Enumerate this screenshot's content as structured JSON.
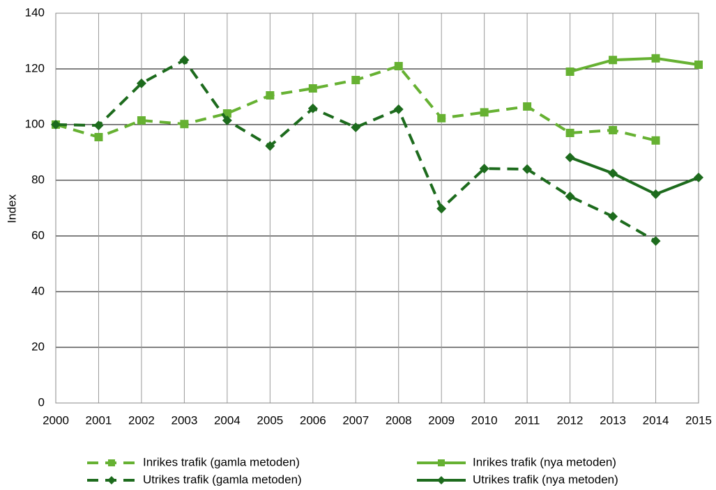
{
  "chart_data": {
    "type": "line",
    "y_label": "Index",
    "x": [
      2000,
      2001,
      2002,
      2003,
      2004,
      2005,
      2006,
      2007,
      2008,
      2009,
      2010,
      2011,
      2012,
      2013,
      2014,
      2015
    ],
    "xlim": [
      2000,
      2015
    ],
    "xticks": [
      2000,
      2001,
      2002,
      2003,
      2004,
      2005,
      2006,
      2007,
      2008,
      2009,
      2010,
      2011,
      2012,
      2013,
      2014,
      2015
    ],
    "ylim": [
      0,
      140
    ],
    "yticks": [
      0,
      20,
      40,
      60,
      80,
      100,
      120,
      140
    ],
    "grid": true,
    "legend": "bottom",
    "series": [
      {
        "name": "Inrikes trafik (gamla metoden)",
        "color": "#66b132",
        "dash": true,
        "marker": "square",
        "values": [
          100,
          95.5,
          101.5,
          100.2,
          104,
          110.5,
          113,
          116,
          121,
          102.3,
          104.4,
          106.5,
          97,
          98,
          94.3,
          null
        ]
      },
      {
        "name": "Inrikes trafik (nya metoden)",
        "color": "#66b132",
        "dash": false,
        "marker": "square",
        "values": [
          null,
          null,
          null,
          null,
          null,
          null,
          null,
          null,
          null,
          null,
          null,
          null,
          119,
          123.2,
          123.8,
          121.5
        ]
      },
      {
        "name": "Utrikes trafik (gamla metoden)",
        "color": "#1d6b1d",
        "dash": true,
        "marker": "diamond",
        "values": [
          100,
          99.7,
          114.8,
          123.2,
          101.5,
          92.3,
          105.8,
          99,
          105.5,
          69.8,
          84.2,
          84,
          74.2,
          67,
          58.2,
          null
        ]
      },
      {
        "name": "Utrikes trafik (nya metoden)",
        "color": "#1d6b1d",
        "dash": false,
        "marker": "diamond",
        "values": [
          null,
          null,
          null,
          null,
          null,
          null,
          null,
          null,
          null,
          null,
          null,
          null,
          88.2,
          82.5,
          75,
          81
        ]
      }
    ]
  }
}
